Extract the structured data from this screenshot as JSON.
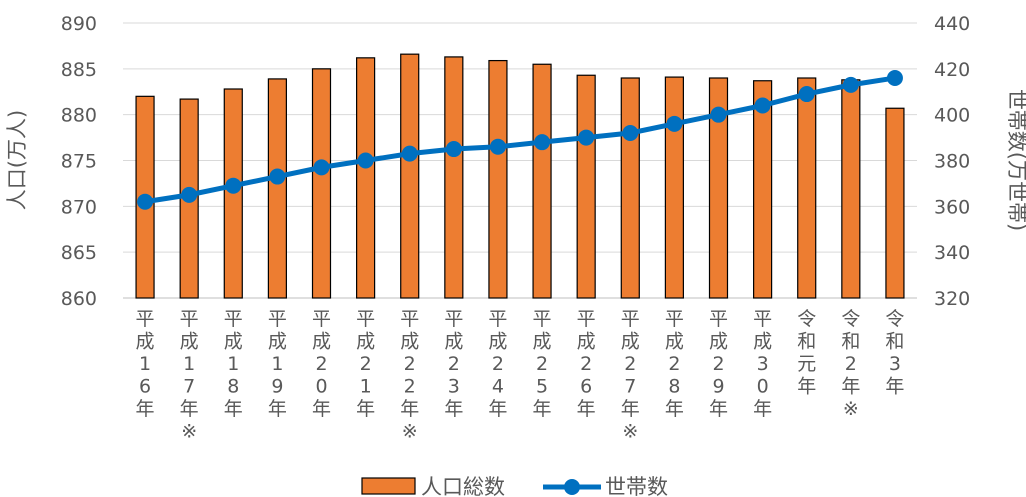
{
  "chart_data": {
    "type": "bar",
    "categories": [
      "平成16年",
      "平成17年※",
      "平成18年",
      "平成19年",
      "平成20年",
      "平成21年",
      "平成22年※",
      "平成23年",
      "平成24年",
      "平成25年",
      "平成26年",
      "平成27年※",
      "平成28年",
      "平成29年",
      "平成30年",
      "令和元年",
      "令和2年※",
      "令和3年"
    ],
    "series": [
      {
        "name": "人口総数",
        "type": "bar",
        "axis": "left",
        "color": "#ED7D31",
        "values": [
          882.0,
          881.7,
          882.8,
          883.9,
          885.0,
          886.2,
          886.6,
          886.3,
          885.9,
          885.5,
          884.3,
          884.0,
          884.1,
          884.0,
          883.7,
          884.0,
          883.8,
          880.7
        ]
      },
      {
        "name": "世帯数",
        "type": "line",
        "axis": "right",
        "color": "#0070C0",
        "values": [
          362,
          365,
          369,
          373,
          377,
          380,
          383,
          385,
          386,
          388,
          390,
          392,
          396,
          400,
          404,
          409,
          413,
          416
        ]
      }
    ],
    "ylabel": "人口(万人)",
    "ylabel_right": "世帯数(万世帯)",
    "ylim": [
      860,
      890
    ],
    "ylim_right": [
      320,
      440
    ],
    "yticks": [
      "860",
      "865",
      "870",
      "875",
      "880",
      "885",
      "890"
    ],
    "yticks_right": [
      "320",
      "340",
      "360",
      "380",
      "400",
      "420",
      "440"
    ],
    "grid": true,
    "legend": "bottom"
  }
}
